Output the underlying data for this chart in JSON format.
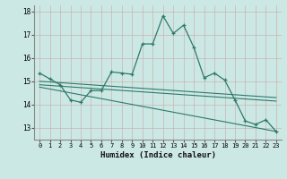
{
  "xlabel": "Humidex (Indice chaleur)",
  "ylabel": "",
  "bg_color": "#cce8e4",
  "line_color": "#2d7a6a",
  "xlim": [
    -0.5,
    23.5
  ],
  "ylim": [
    12.5,
    18.25
  ],
  "yticks": [
    13,
    14,
    15,
    16,
    17,
    18
  ],
  "xticks": [
    0,
    1,
    2,
    3,
    4,
    5,
    6,
    7,
    8,
    9,
    10,
    11,
    12,
    13,
    14,
    15,
    16,
    17,
    18,
    19,
    20,
    21,
    22,
    23
  ],
  "main_x": [
    0,
    1,
    2,
    3,
    4,
    5,
    6,
    7,
    8,
    9,
    10,
    11,
    12,
    13,
    14,
    15,
    16,
    17,
    18,
    19,
    20,
    21,
    22,
    23
  ],
  "main_y": [
    15.35,
    15.1,
    14.85,
    14.2,
    14.1,
    14.6,
    14.6,
    15.4,
    15.35,
    15.3,
    16.6,
    16.6,
    17.8,
    17.05,
    17.4,
    16.45,
    15.15,
    15.35,
    15.05,
    14.2,
    13.3,
    13.15,
    13.35,
    12.85
  ],
  "trend1_x": [
    0,
    23
  ],
  "trend1_y": [
    15.0,
    14.3
  ],
  "trend2_x": [
    0,
    23
  ],
  "trend2_y": [
    14.85,
    14.15
  ],
  "trend3_x": [
    0,
    23
  ],
  "trend3_y": [
    14.75,
    12.85
  ]
}
